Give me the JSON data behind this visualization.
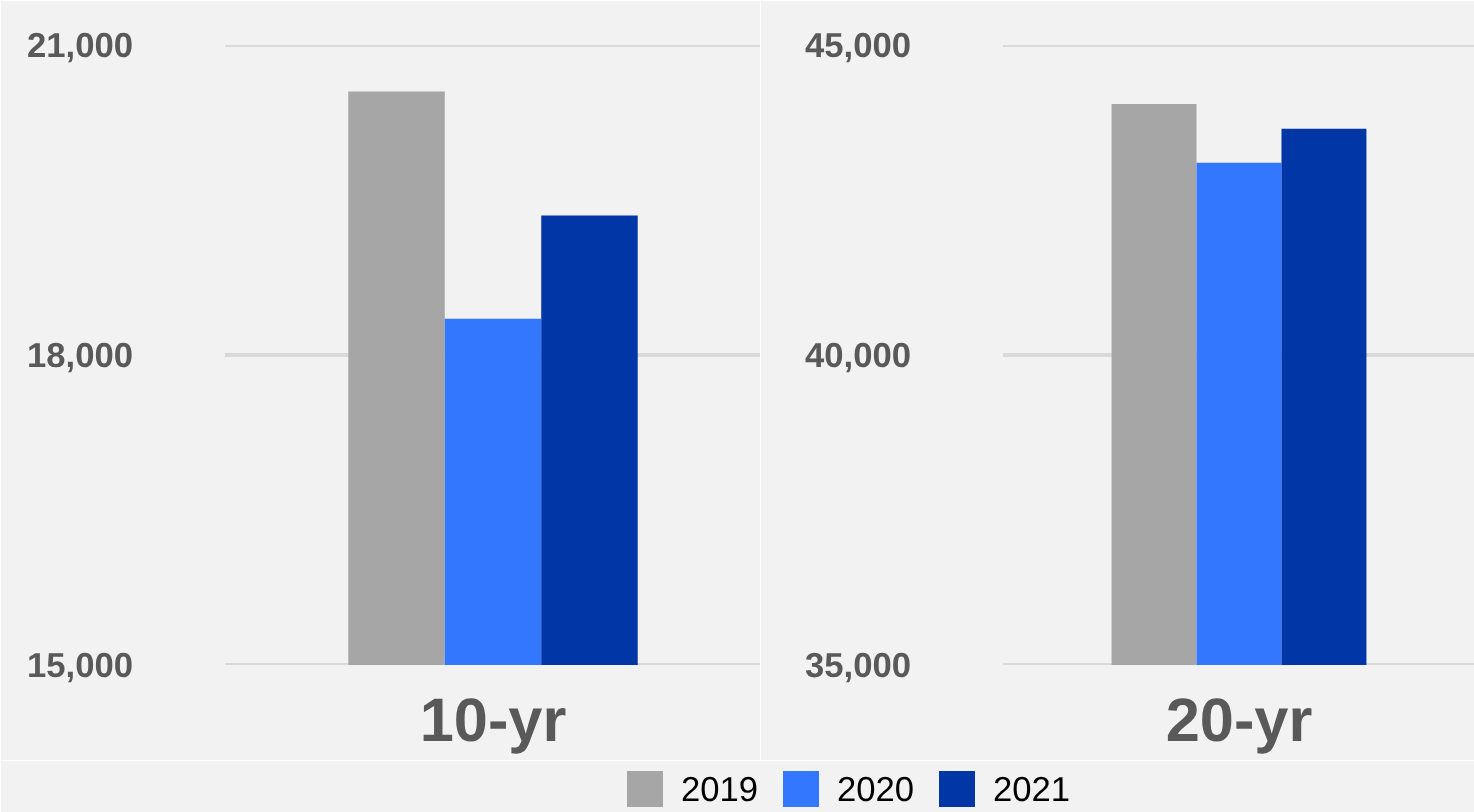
{
  "chart_data": [
    {
      "type": "bar",
      "categories": [
        "10-yr"
      ],
      "ylim": [
        15000,
        21000
      ],
      "yticks": [
        {
          "value": 15000,
          "label": "15,000"
        },
        {
          "value": 18000,
          "label": "18,000"
        },
        {
          "value": 21000,
          "label": "21,000"
        }
      ],
      "grid": "y",
      "legend": "bottom",
      "series": [
        {
          "name": "2019",
          "color": "#a6a6a6",
          "values": [
            20550
          ]
        },
        {
          "name": "2020",
          "color": "#3377ff",
          "values": [
            18350
          ]
        },
        {
          "name": "2021",
          "color": "#0036a6",
          "values": [
            19350
          ]
        }
      ]
    },
    {
      "type": "bar",
      "categories": [
        "20-yr"
      ],
      "ylim": [
        35000,
        45000
      ],
      "yticks": [
        {
          "value": 35000,
          "label": "35,000"
        },
        {
          "value": 40000,
          "label": "40,000"
        },
        {
          "value": 45000,
          "label": "45,000"
        }
      ],
      "grid": "y",
      "legend": false,
      "series": [
        {
          "color": "#a6a6a6",
          "values": [
            44050
          ]
        },
        {
          "color": "#3377ff",
          "values": [
            43100
          ]
        },
        {
          "color": "#0036a6",
          "values": [
            43650
          ]
        }
      ]
    }
  ]
}
